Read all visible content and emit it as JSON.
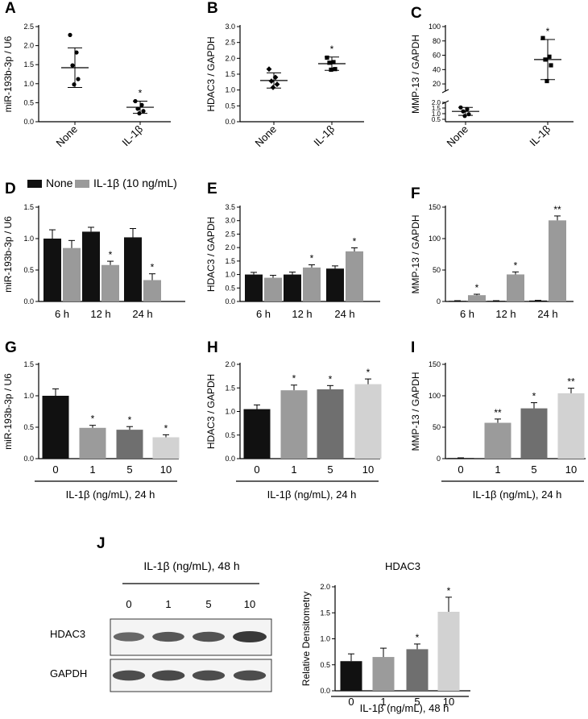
{
  "colors": {
    "none": "#111111",
    "il10": "#9a9a9a",
    "dose0": "#111111",
    "dose1": "#9b9b9b",
    "dose5": "#6f6f6f",
    "dose10": "#d2d2d2",
    "error": "#000000"
  },
  "legend": {
    "none": "None",
    "il": "IL-1β (10 ng/mL)"
  },
  "chart_data": [
    {
      "id": "A",
      "type": "scatter",
      "letter": "A",
      "ylabel": "miR-193b-3p / U6",
      "categories": [
        "None",
        "IL-1β"
      ],
      "ylim": [
        0,
        2.5
      ],
      "yticks": [
        0,
        0.5,
        1.0,
        1.5,
        2.0,
        2.5
      ],
      "yticklabels": [
        "0.0",
        "0.5",
        "1.0",
        "1.5",
        "2.0",
        "2.5"
      ],
      "groups": [
        {
          "points": [
            2.28,
            1.82,
            1.48,
            1.12,
            0.98
          ],
          "mean": 1.42,
          "sd": 0.52,
          "marker": "circle",
          "sig": ""
        },
        {
          "points": [
            0.54,
            0.44,
            0.34,
            0.28,
            0.22
          ],
          "mean": 0.38,
          "sd": 0.16,
          "marker": "circle",
          "sig": "*"
        }
      ]
    },
    {
      "id": "B",
      "type": "scatter",
      "letter": "B",
      "ylabel": "HDAC3 / GAPDH",
      "categories": [
        "None",
        "IL-1β"
      ],
      "ylim": [
        0,
        3.0
      ],
      "yticks": [
        0,
        0.5,
        1.0,
        1.5,
        2.0,
        2.5,
        3.0
      ],
      "yticklabels": [
        "0.0",
        "0.5",
        "1.0",
        "1.5",
        "2.0",
        "2.5",
        "3.0"
      ],
      "groups": [
        {
          "points": [
            1.66,
            1.4,
            1.28,
            1.18,
            1.08
          ],
          "mean": 1.3,
          "sd": 0.24,
          "marker": "diamond",
          "sig": ""
        },
        {
          "points": [
            2.02,
            1.88,
            1.86,
            1.66,
            1.64
          ],
          "mean": 1.83,
          "sd": 0.21,
          "marker": "square",
          "sig": "*"
        }
      ]
    },
    {
      "id": "C",
      "type": "scatter",
      "letter": "C",
      "ylabel": "MMP-13 / GAPDH",
      "categories": [
        "None",
        "IL-1β"
      ],
      "broken": true,
      "lower": [
        0.5,
        2.0
      ],
      "upper": [
        10,
        100
      ],
      "lowerTicks": [
        0.5,
        1.0,
        1.5,
        2.0
      ],
      "lowerTickLabels": [
        "0.5",
        "1.0",
        "1.5",
        "2.0"
      ],
      "upperTicks": [
        20,
        40,
        60,
        80,
        100
      ],
      "upperTickLabels": [
        "20",
        "40",
        "60",
        "80",
        "100"
      ],
      "groups": [
        {
          "points": [
            1.55,
            1.4,
            1.2,
            0.95,
            0.8
          ],
          "mean": 1.2,
          "sd": 0.35,
          "marker": "circle",
          "sig": ""
        },
        {
          "points": [
            84,
            58,
            54,
            46,
            24
          ],
          "mean": 54,
          "sd": 28,
          "marker": "square",
          "sig": "*"
        }
      ]
    },
    {
      "id": "D",
      "type": "bar",
      "letter": "D",
      "ylabel": "miR-193b-3p / U6",
      "categories": [
        "6 h",
        "12 h",
        "24 h"
      ],
      "ylim": [
        0,
        1.5
      ],
      "yticks": [
        0,
        0.5,
        1.0,
        1.5
      ],
      "yticklabels": [
        "0.0",
        "0.5",
        "1.0",
        "1.5"
      ],
      "series": [
        {
          "name": "None",
          "colorKey": "none",
          "values": [
            1.0,
            1.11,
            1.02
          ],
          "err": [
            0.14,
            0.07,
            0.14
          ],
          "sig": [
            "",
            "",
            ""
          ]
        },
        {
          "name": "IL-1β (10 ng/mL)",
          "colorKey": "il10",
          "values": [
            0.85,
            0.58,
            0.34
          ],
          "err": [
            0.12,
            0.06,
            0.1
          ],
          "sig": [
            "",
            "*",
            "*"
          ]
        }
      ]
    },
    {
      "id": "E",
      "type": "bar",
      "letter": "E",
      "ylabel": "HDAC3 / GAPDH",
      "categories": [
        "6 h",
        "12 h",
        "24 h"
      ],
      "ylim": [
        0,
        3.5
      ],
      "yticks": [
        0,
        0.5,
        1.0,
        1.5,
        2.0,
        2.5,
        3.0,
        3.5
      ],
      "yticklabels": [
        "0.0",
        "0.5",
        "1.0",
        "1.5",
        "2.0",
        "2.5",
        "3.0",
        "3.5"
      ],
      "series": [
        {
          "name": "None",
          "colorKey": "none",
          "values": [
            1.0,
            1.0,
            1.22
          ],
          "err": [
            0.08,
            0.09,
            0.1
          ],
          "sig": [
            "",
            "",
            ""
          ]
        },
        {
          "name": "IL-1β (10 ng/mL)",
          "colorKey": "il10",
          "values": [
            0.88,
            1.26,
            1.86
          ],
          "err": [
            0.09,
            0.1,
            0.13
          ],
          "sig": [
            "",
            "*",
            "*"
          ]
        }
      ]
    },
    {
      "id": "F",
      "type": "bar",
      "letter": "F",
      "ylabel": "MMP-13 / GAPDH",
      "categories": [
        "6 h",
        "12 h",
        "24 h"
      ],
      "ylim": [
        0,
        150
      ],
      "yticks": [
        0,
        50,
        100,
        150
      ],
      "yticklabels": [
        "0",
        "50",
        "100",
        "150"
      ],
      "series": [
        {
          "name": "None",
          "colorKey": "none",
          "values": [
            1,
            1,
            1.5
          ],
          "err": [
            0.3,
            0.3,
            0.3
          ],
          "sig": [
            "",
            "",
            ""
          ]
        },
        {
          "name": "IL-1β (10 ng/mL)",
          "colorKey": "il10",
          "values": [
            10,
            43,
            129
          ],
          "err": [
            1.5,
            4,
            7
          ],
          "sig": [
            "*",
            "*",
            "**"
          ]
        }
      ]
    },
    {
      "id": "G",
      "type": "bar",
      "letter": "G",
      "ylabel": "miR-193b-3p / U6",
      "categories": [
        "0",
        "1",
        "5",
        "10"
      ],
      "xlabel": "IL-1β (ng/mL), 24 h",
      "ylim": [
        0,
        1.5
      ],
      "yticks": [
        0,
        0.5,
        1.0,
        1.5
      ],
      "yticklabels": [
        "0.0",
        "0.5",
        "1.0",
        "1.5"
      ],
      "series": [
        {
          "name": "dose",
          "colorKeys": [
            "dose0",
            "dose1",
            "dose5",
            "dose10"
          ],
          "values": [
            1.0,
            0.49,
            0.46,
            0.34
          ],
          "err": [
            0.11,
            0.04,
            0.05,
            0.04
          ],
          "sig": [
            "",
            "*",
            "*",
            "*"
          ]
        }
      ]
    },
    {
      "id": "H",
      "type": "bar",
      "letter": "H",
      "ylabel": "HDAC3 / GAPDH",
      "categories": [
        "0",
        "1",
        "5",
        "10"
      ],
      "xlabel": "IL-1β (ng/mL), 24 h",
      "ylim": [
        0,
        2.0
      ],
      "yticks": [
        0,
        0.5,
        1.0,
        1.5,
        2.0
      ],
      "yticklabels": [
        "0.0",
        "0.5",
        "1.0",
        "1.5",
        "2.0"
      ],
      "series": [
        {
          "name": "dose",
          "colorKeys": [
            "dose0",
            "dose1",
            "dose5",
            "dose10"
          ],
          "values": [
            1.05,
            1.45,
            1.47,
            1.58
          ],
          "err": [
            0.09,
            0.11,
            0.08,
            0.11
          ],
          "sig": [
            "",
            "*",
            "*",
            "*"
          ]
        }
      ]
    },
    {
      "id": "I",
      "type": "bar",
      "letter": "I",
      "ylabel": "MMP-13 / GAPDH",
      "categories": [
        "0",
        "1",
        "5",
        "10"
      ],
      "xlabel": "IL-1β (ng/mL), 24 h",
      "ylim": [
        0,
        150
      ],
      "yticks": [
        0,
        50,
        100,
        150
      ],
      "yticklabels": [
        "0",
        "50",
        "100",
        "150"
      ],
      "series": [
        {
          "name": "dose",
          "colorKeys": [
            "dose0",
            "dose1",
            "dose5",
            "dose10"
          ],
          "values": [
            1,
            57,
            80,
            104
          ],
          "err": [
            0.3,
            6,
            9,
            8
          ],
          "sig": [
            "",
            "**",
            "*",
            "**"
          ]
        }
      ]
    },
    {
      "id": "J",
      "type": "bar",
      "letter": "",
      "title": "HDAC3",
      "ylabel": "Relative Densitometry",
      "categories": [
        "0",
        "1",
        "5",
        "10"
      ],
      "xlabel": "IL-1β (ng/mL), 48 h",
      "ylim": [
        0,
        2.0
      ],
      "yticks": [
        0,
        0.5,
        1.0,
        1.5,
        2.0
      ],
      "yticklabels": [
        "0.0",
        "0.5",
        "1.0",
        "1.5",
        "2.0"
      ],
      "series": [
        {
          "name": "dose",
          "colorKeys": [
            "dose0",
            "dose1",
            "dose5",
            "dose10"
          ],
          "values": [
            0.57,
            0.65,
            0.8,
            1.52
          ],
          "err": [
            0.14,
            0.17,
            0.1,
            0.28
          ],
          "sig": [
            "",
            "",
            "*",
            "*"
          ]
        }
      ]
    }
  ],
  "blot": {
    "letter": "J",
    "header": "IL-1β (ng/mL), 48 h",
    "lanes": [
      "0",
      "1",
      "5",
      "10"
    ],
    "rows": [
      {
        "label": "HDAC3",
        "intensity": [
          0.55,
          0.7,
          0.75,
          1.0
        ]
      },
      {
        "label": "GAPDH",
        "intensity": [
          0.8,
          0.85,
          0.8,
          0.8
        ]
      }
    ]
  }
}
